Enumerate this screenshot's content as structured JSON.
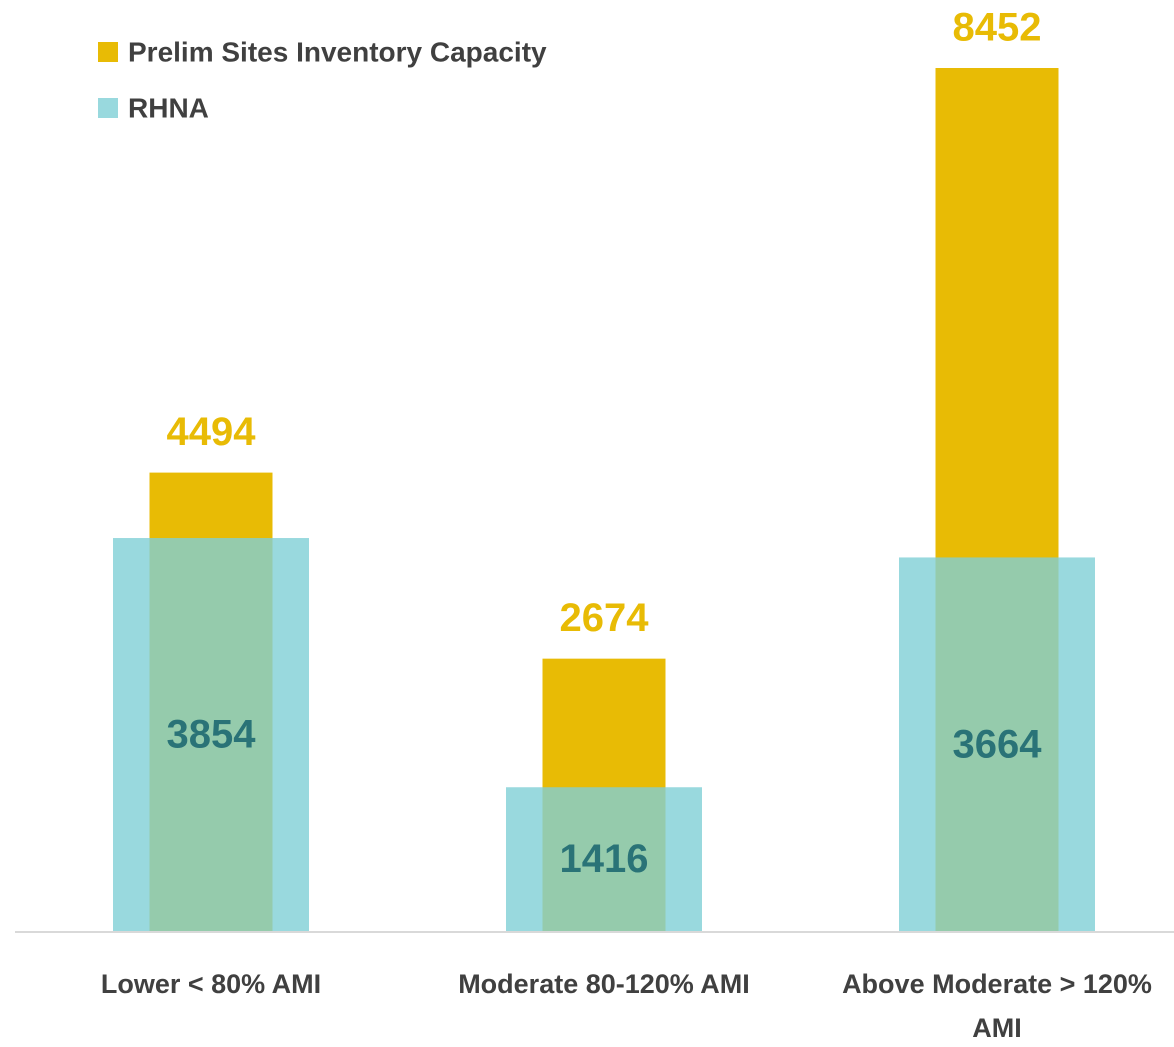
{
  "chart_data": {
    "type": "overlapping_bar",
    "categories": [
      "Lower < 80% AMI",
      "Moderate 80-120% AMI",
      "Above Moderate > 120% AMI"
    ],
    "series": [
      {
        "name": "Prelim Sites Inventory Capacity",
        "color": "#e8bb05",
        "values": [
          4494,
          2674,
          8452
        ]
      },
      {
        "name": "RHNA",
        "color": "#7fcfd6",
        "values": [
          3854,
          1416,
          3664
        ]
      }
    ],
    "legend": "top-left"
  }
}
